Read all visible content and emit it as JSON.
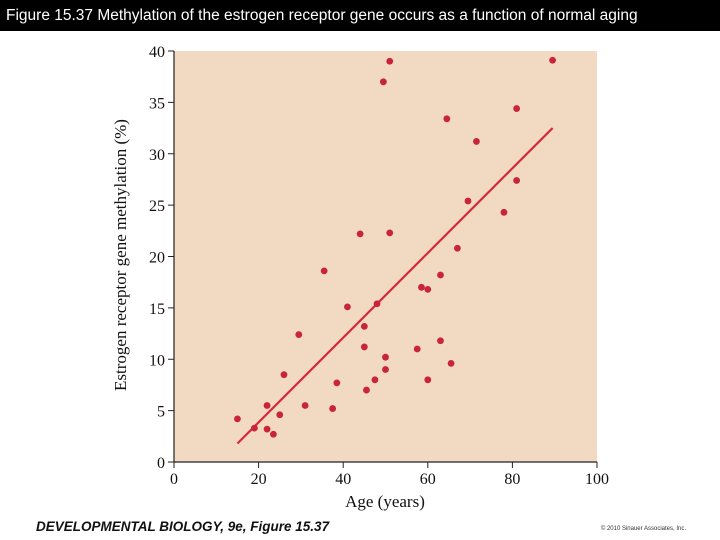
{
  "header": {
    "title": "Figure 15.37  Methylation of the estrogen receptor gene occurs as a function of normal aging"
  },
  "footer": {
    "book": "DEVELOPMENTAL BIOLOGY, 9e, Figure 15.37",
    "copyright": "© 2010 Sinauer Associates, Inc."
  },
  "colors": {
    "plot_bg": "#f2d9c2",
    "points": "#c8243a",
    "trendline": "#d42a3a"
  },
  "chart_data": {
    "type": "scatter",
    "title": "",
    "xlabel": "Age (years)",
    "ylabel": "Estrogen receptor gene methylation (%)",
    "xlim": [
      0,
      100
    ],
    "ylim": [
      0,
      40
    ],
    "xticks": [
      0,
      20,
      40,
      60,
      80,
      100
    ],
    "yticks": [
      0,
      5,
      10,
      15,
      20,
      25,
      30,
      35,
      40
    ],
    "grid": false,
    "points": [
      {
        "x": 15,
        "y": 4.2
      },
      {
        "x": 19,
        "y": 3.3
      },
      {
        "x": 22,
        "y": 3.2
      },
      {
        "x": 22,
        "y": 5.5
      },
      {
        "x": 23.5,
        "y": 2.7
      },
      {
        "x": 25,
        "y": 4.6
      },
      {
        "x": 26,
        "y": 8.5
      },
      {
        "x": 29.5,
        "y": 12.4
      },
      {
        "x": 31,
        "y": 5.5
      },
      {
        "x": 35.5,
        "y": 18.6
      },
      {
        "x": 37.5,
        "y": 5.2
      },
      {
        "x": 38.5,
        "y": 7.7
      },
      {
        "x": 41,
        "y": 15.1
      },
      {
        "x": 44,
        "y": 22.2
      },
      {
        "x": 45,
        "y": 13.2
      },
      {
        "x": 45,
        "y": 11.2
      },
      {
        "x": 45.5,
        "y": 7.0
      },
      {
        "x": 47.5,
        "y": 8.0
      },
      {
        "x": 48,
        "y": 15.4
      },
      {
        "x": 49.5,
        "y": 37.0
      },
      {
        "x": 50,
        "y": 10.2
      },
      {
        "x": 50,
        "y": 9.0
      },
      {
        "x": 51,
        "y": 39.0
      },
      {
        "x": 51,
        "y": 22.3
      },
      {
        "x": 57.5,
        "y": 11.0
      },
      {
        "x": 58.5,
        "y": 17.0
      },
      {
        "x": 60,
        "y": 16.8
      },
      {
        "x": 60,
        "y": 8.0
      },
      {
        "x": 63,
        "y": 18.2
      },
      {
        "x": 63,
        "y": 11.8
      },
      {
        "x": 64.5,
        "y": 33.4
      },
      {
        "x": 65.5,
        "y": 9.6
      },
      {
        "x": 67,
        "y": 20.8
      },
      {
        "x": 69.5,
        "y": 25.4
      },
      {
        "x": 71.5,
        "y": 31.2
      },
      {
        "x": 78,
        "y": 24.3
      },
      {
        "x": 81,
        "y": 34.4
      },
      {
        "x": 81,
        "y": 27.4
      },
      {
        "x": 89.5,
        "y": 39.1
      }
    ],
    "trendline": {
      "x": [
        15,
        89.5
      ],
      "y": [
        1.8,
        32.5
      ]
    }
  }
}
